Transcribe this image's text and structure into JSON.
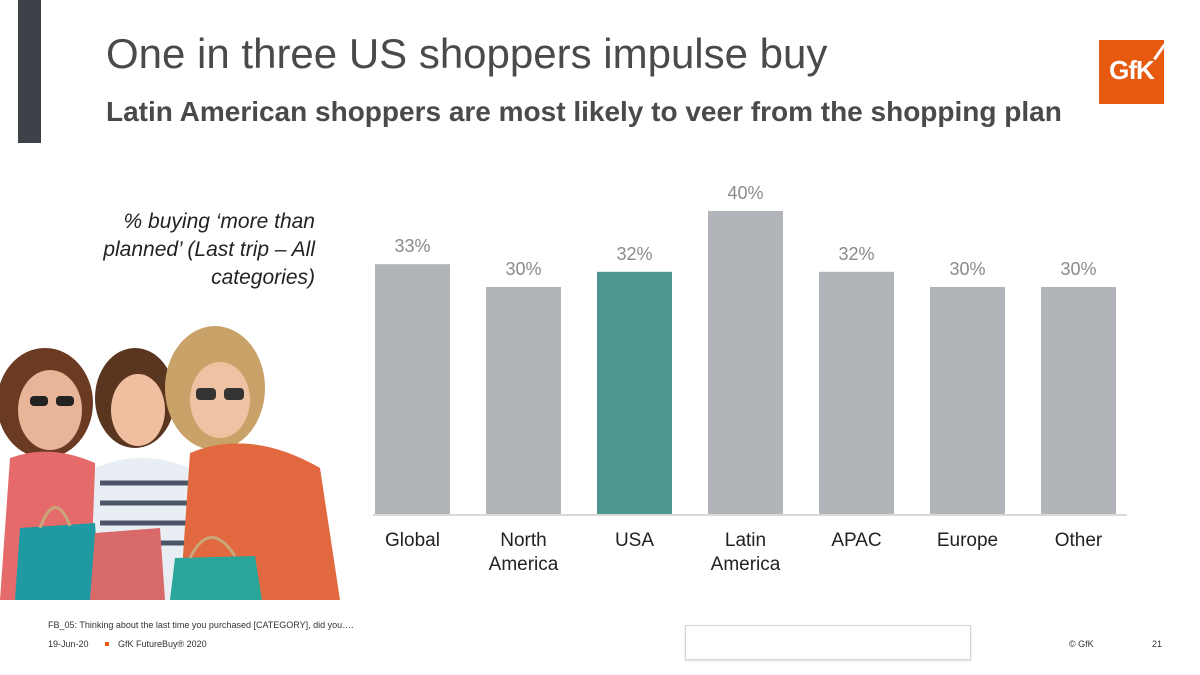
{
  "slide": {
    "title": "One in three US shoppers impulse buy",
    "subtitle": "Latin American shoppers are most likely to veer from the shopping plan",
    "measure_label": "% buying ‘more than planned’ (Last trip – All categories)",
    "logo_text": "GfK",
    "footnote": "FB_05: Thinking about the last time you purchased [CATEGORY], did you….",
    "date": "19-Jun-20",
    "source": "GfK FutureBuy® 2020",
    "copyright": "© GfK",
    "page_number": "21"
  },
  "colors": {
    "accent_bar": "#3d4148",
    "logo_orange": "#e55a0e",
    "bar_default": "#b1b4b8",
    "bar_highlight": "#4e968f",
    "axis_line": "#d9d9d9"
  },
  "chart_data": {
    "type": "bar",
    "categories": [
      "Global",
      "North America",
      "USA",
      "Latin America",
      "APAC",
      "Europe",
      "Other"
    ],
    "category_lines": [
      [
        "Global"
      ],
      [
        "North",
        "America"
      ],
      [
        "USA"
      ],
      [
        "Latin",
        "America"
      ],
      [
        "APAC"
      ],
      [
        "Europe"
      ],
      [
        "Other"
      ]
    ],
    "values": [
      33,
      30,
      32,
      40,
      32,
      30,
      30
    ],
    "value_labels": [
      "33%",
      "30%",
      "32%",
      "40%",
      "32%",
      "30%",
      "30%"
    ],
    "highlight_category": "USA",
    "ylim": [
      0,
      40
    ],
    "grid": false,
    "legend": "none"
  }
}
